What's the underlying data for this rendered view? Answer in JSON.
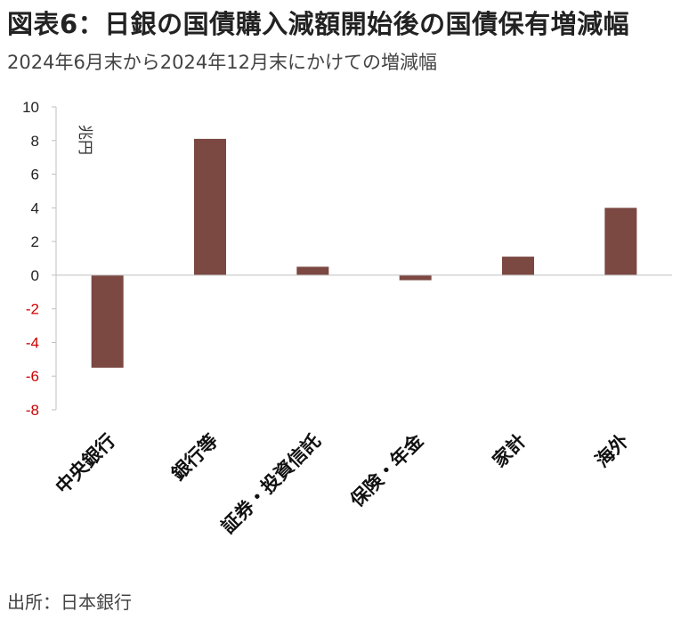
{
  "title": "図表6：日銀の国債購入減額開始後の国債保有増減幅",
  "subtitle": "2024年6月末から2024年12月末にかけての増減幅",
  "source": "出所：日本銀行",
  "colors": {
    "bar": "#7b4842",
    "negative_tick": "#cc0000",
    "axis": "#bfbfbf"
  },
  "chart_data": {
    "type": "bar",
    "title": "図表6：日銀の国債購入減額開始後の国債保有増減幅",
    "subtitle": "2024年6月末から2024年12月末にかけての増減幅",
    "unit_label": "兆円",
    "categories": [
      "中央銀行",
      "銀行等",
      "証券・投資信託",
      "保険・年金",
      "家計",
      "海外"
    ],
    "values": [
      -5.5,
      8.1,
      0.5,
      -0.3,
      1.1,
      4.0
    ],
    "ylim": [
      -8,
      10
    ],
    "yticks": [
      10,
      8,
      6,
      4,
      2,
      0,
      -2,
      -4,
      -6,
      -8
    ],
    "xlabel": "",
    "ylabel": "",
    "grid": false,
    "legend": "none"
  }
}
